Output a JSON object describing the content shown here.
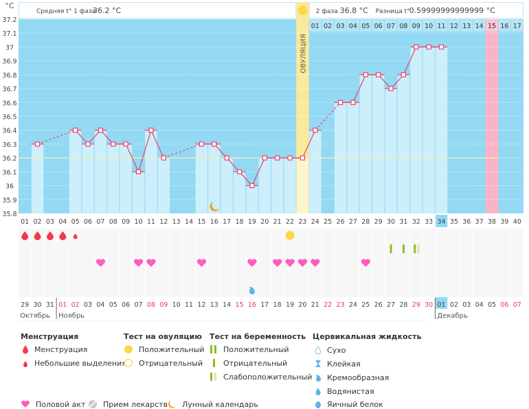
{
  "header": {
    "unit": "°C",
    "phase1_label": "Средняя t° 1 фаза",
    "phase1_value": "36.2 °C",
    "phase2_label": "2 фаза",
    "phase2_value": "36.8 °C",
    "diff_label": "Разница t°",
    "diff_value": "0.59999999999999 °C",
    "ovulation_label": "ОВУЛЯЦИЯ"
  },
  "colors": {
    "background": "#93d9f3",
    "bar": "#cdeefb",
    "line": "#e8416b",
    "ovulation": "#fbe99a",
    "highlight_day": "#fbb4c6",
    "coverline": "#f3f3b0"
  },
  "chart_data": {
    "type": "bar",
    "ylim": [
      35.8,
      37.2
    ],
    "yticks": [
      "37.2",
      "37.1",
      "37",
      "36.9",
      "36.8",
      "36.7",
      "36.6",
      "36.5",
      "36.4",
      "36.3",
      "36.2",
      "36.1",
      "36",
      "35.9",
      "35.8"
    ],
    "grid": true,
    "coverline": 36.2,
    "ovulation_day": 23,
    "today_day": 34,
    "pink_day": 38,
    "cycle_days": [
      "01",
      "02",
      "03",
      "04",
      "05",
      "06",
      "07",
      "08",
      "09",
      "10",
      "11",
      "12",
      "13",
      "14",
      "15",
      "16",
      "17",
      "18",
      "19",
      "20",
      "21",
      "22",
      "23",
      "24",
      "25",
      "26",
      "27",
      "28",
      "29",
      "30",
      "31",
      "32",
      "33",
      "34",
      "35",
      "36",
      "37",
      "38",
      "39",
      "40"
    ],
    "temperatures": [
      null,
      36.3,
      null,
      null,
      36.4,
      36.3,
      36.4,
      36.3,
      36.3,
      36.1,
      36.4,
      36.2,
      null,
      null,
      36.3,
      36.3,
      36.2,
      36.1,
      36.0,
      36.2,
      36.2,
      36.2,
      36.2,
      36.4,
      null,
      36.6,
      36.6,
      36.8,
      36.8,
      36.7,
      36.8,
      37.0,
      37.0,
      37.0,
      null,
      null,
      null,
      null,
      null,
      null
    ],
    "post_ovulation_days": [
      "01",
      "02",
      "03",
      "04",
      "05",
      "06",
      "07",
      "08",
      "09",
      "10",
      "11",
      "12",
      "13",
      "14",
      "15",
      "16",
      "17"
    ],
    "dates": [
      "29",
      "30",
      "31",
      "01",
      "02",
      "03",
      "04",
      "05",
      "06",
      "07",
      "08",
      "09",
      "10",
      "11",
      "12",
      "13",
      "14",
      "15",
      "16",
      "17",
      "18",
      "19",
      "20",
      "21",
      "22",
      "23",
      "24",
      "25",
      "26",
      "27",
      "28",
      "29",
      "30",
      "01",
      "02",
      "03",
      "04",
      "05",
      "06",
      "07"
    ],
    "weekend_date_indexes": [
      3,
      4,
      10,
      11,
      17,
      18,
      24,
      25,
      31,
      32,
      38,
      39
    ],
    "months": [
      {
        "label": "Октябрь",
        "start_day": 1
      },
      {
        "label": "Ноябрь",
        "start_day": 4
      },
      {
        "label": "Декабрь",
        "start_day": 34
      }
    ],
    "markers": {
      "menstruation": [
        1,
        2,
        3,
        4
      ],
      "spotting": [
        5
      ],
      "ovulation_test_positive": [
        22
      ],
      "pregnancy_test_negative": [
        30,
        31
      ],
      "pregnancy_test_weak": [
        32
      ],
      "intercourse": [
        7,
        10,
        11,
        15,
        19,
        21,
        22,
        23,
        24,
        28
      ],
      "cervical_creamy": [
        19
      ],
      "moon": [
        16
      ]
    }
  },
  "legend": {
    "menstruation_title": "Менструация",
    "menstruation": "Менструация",
    "spotting": "Небольшие выделения",
    "ovtest_title": "Тест на овуляцию",
    "ovtest_pos": "Положительный",
    "ovtest_neg": "Отрицательный",
    "pregtest_title": "Тест на беременность",
    "pregtest_pos": "Положительный",
    "pregtest_neg": "Отрицательный",
    "pregtest_weak": "Слабоположительный",
    "cervical_title": "Цервикальная жидкость",
    "cf_dry": "Сухо",
    "cf_sticky": "Клейкая",
    "cf_creamy": "Кремообразная",
    "cf_watery": "Водянистая",
    "cf_eggwhite": "Яичный белок",
    "intercourse": "Половой акт",
    "medication": "Прием лекарств",
    "moon": "Лунный календарь"
  }
}
